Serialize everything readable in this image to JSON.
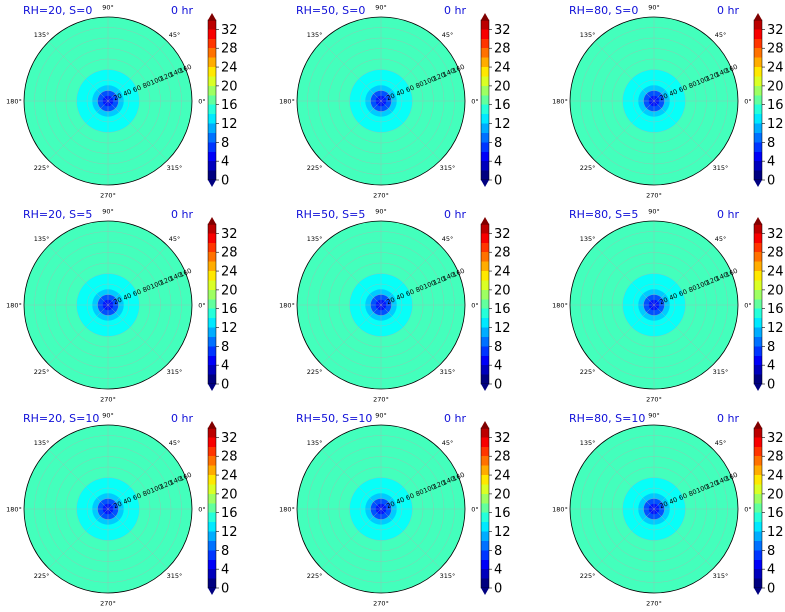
{
  "figure": {
    "angle_ticks": [
      "90°",
      "135°",
      "180°",
      "225°",
      "270°",
      "315°",
      "0°",
      "45°"
    ],
    "radial_ticks": [
      "20",
      "40",
      "60",
      "80",
      "100",
      "120",
      "140",
      "160"
    ],
    "colorbar_ticks": [
      "0",
      "4",
      "8",
      "12",
      "16",
      "20",
      "24",
      "28",
      "32"
    ],
    "colormap": "jet",
    "colorbar_range": [
      0,
      34
    ]
  },
  "chart_data": [
    {
      "type": "heatmap",
      "title": "RH=20, S=0",
      "time_label": "0 hr"
    },
    {
      "type": "heatmap",
      "title": "RH=50, S=0",
      "time_label": "0 hr"
    },
    {
      "type": "heatmap",
      "title": "RH=80, S=0",
      "time_label": "0 hr"
    },
    {
      "type": "heatmap",
      "title": "RH=20, S=5",
      "time_label": "0 hr"
    },
    {
      "type": "heatmap",
      "title": "RH=50, S=5",
      "time_label": "0 hr"
    },
    {
      "type": "heatmap",
      "title": "RH=80, S=5",
      "time_label": "0 hr"
    },
    {
      "type": "heatmap",
      "title": "RH=20, S=10",
      "time_label": "0 hr"
    },
    {
      "type": "heatmap",
      "title": "RH=50, S=10",
      "time_label": "0 hr"
    },
    {
      "type": "heatmap",
      "title": "RH=80, S=10",
      "time_label": "0 hr"
    }
  ],
  "radial_profile": {
    "radius": [
      0,
      10,
      20,
      30,
      40,
      60,
      80,
      110,
      160
    ],
    "value": [
      3,
      6,
      9,
      11,
      13,
      14,
      15,
      15.5,
      14
    ]
  }
}
